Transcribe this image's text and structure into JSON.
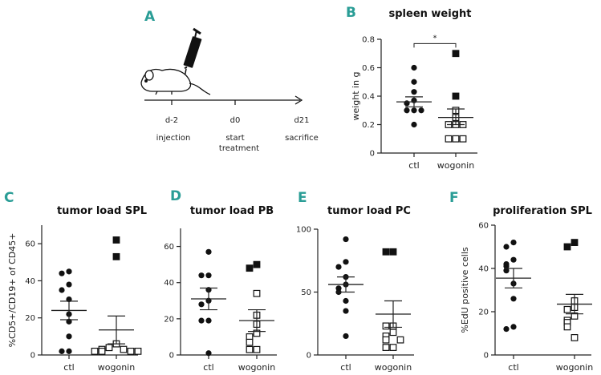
{
  "panel_a": {
    "letter": "A",
    "timeline": [
      {
        "day": "d-2",
        "label": "injection",
        "label2": ""
      },
      {
        "day": "d0",
        "label": "start",
        "label2": "treatment"
      },
      {
        "day": "d21",
        "label": "sacrifice",
        "label2": ""
      }
    ]
  },
  "colors": {
    "letter": "#2a9d96",
    "marker": "#111111"
  },
  "chart_data": [
    {
      "id": "B",
      "letter": "B",
      "type": "scatter",
      "title": "spleen weight",
      "ylabel": "weight in g",
      "categories": [
        "ctl",
        "wogonin"
      ],
      "ylim": [
        0,
        0.8
      ],
      "yticks": [
        0,
        0.2,
        0.4,
        0.6,
        0.8
      ],
      "ytick_labels": [
        "0",
        "0.2",
        "0.4",
        "0.6",
        "0.8"
      ],
      "significance": "*",
      "series": [
        {
          "name": "ctl",
          "marker": "filled-circle",
          "values": [
            0.6,
            0.5,
            0.43,
            0.37,
            0.35,
            0.3,
            0.3,
            0.3,
            0.2
          ],
          "mean": 0.36,
          "sem": [
            0.325,
            0.395
          ]
        },
        {
          "name": "wogonin",
          "marker": "open-square",
          "filled_values": [
            0.7,
            0.4
          ],
          "values": [
            0.3,
            0.25,
            0.2,
            0.2,
            0.2,
            0.1,
            0.1,
            0.1
          ],
          "mean": 0.25,
          "sem": [
            0.2,
            0.31
          ]
        }
      ]
    },
    {
      "id": "C",
      "letter": "C",
      "type": "scatter",
      "title": "tumor load SPL",
      "ylabel": "%CD5+/CD19+ of CD45+",
      "categories": [
        "ctl",
        "wogonin"
      ],
      "ylim": [
        0,
        70
      ],
      "yticks": [
        0,
        20,
        40,
        60
      ],
      "ytick_labels": [
        "0",
        "20",
        "40",
        "60"
      ],
      "series": [
        {
          "name": "ctl",
          "marker": "filled-circle",
          "values": [
            45,
            44,
            38,
            35,
            30,
            22,
            18,
            10,
            2,
            2
          ],
          "mean": 24,
          "sem": [
            19,
            29
          ]
        },
        {
          "name": "wogonin",
          "marker": "open-square",
          "filled_values": [
            62,
            53
          ],
          "values": [
            6,
            4,
            3,
            3,
            2,
            2,
            2,
            2
          ],
          "mean": 13.5,
          "sem": [
            6,
            21
          ]
        }
      ]
    },
    {
      "id": "D",
      "letter": "D",
      "type": "scatter",
      "title": "tumor load PB",
      "ylabel": "",
      "categories": [
        "ctl",
        "wogonin"
      ],
      "ylim": [
        0,
        70
      ],
      "yticks": [
        0,
        20,
        40,
        60
      ],
      "ytick_labels": [
        "0",
        "20",
        "40",
        "60"
      ],
      "series": [
        {
          "name": "ctl",
          "marker": "filled-circle",
          "values": [
            57,
            44,
            44,
            36,
            30,
            28,
            19,
            19,
            1
          ],
          "mean": 31,
          "sem": [
            25,
            37
          ]
        },
        {
          "name": "wogonin",
          "marker": "open-square",
          "filled_values": [
            50,
            48
          ],
          "values": [
            34,
            22,
            17,
            12,
            10,
            7,
            3,
            3
          ],
          "mean": 19,
          "sem": [
            13,
            25
          ]
        }
      ]
    },
    {
      "id": "E",
      "letter": "E",
      "type": "scatter",
      "title": "tumor load PC",
      "ylabel": "",
      "categories": [
        "ctl",
        "wogonin"
      ],
      "ylim": [
        0,
        100
      ],
      "yticks": [
        0,
        50,
        100
      ],
      "ytick_labels": [
        "0",
        "50",
        "100"
      ],
      "series": [
        {
          "name": "ctl",
          "marker": "filled-circle",
          "values": [
            92,
            74,
            70,
            62,
            56,
            53,
            50,
            43,
            35,
            15
          ],
          "mean": 56,
          "sem": [
            50,
            62
          ]
        },
        {
          "name": "wogonin",
          "marker": "open-square",
          "filled_values": [
            82,
            82
          ],
          "values": [
            23,
            23,
            18,
            15,
            12,
            12,
            6,
            6
          ],
          "mean": 32.5,
          "sem": [
            22,
            43
          ]
        }
      ]
    },
    {
      "id": "F",
      "letter": "F",
      "type": "scatter",
      "title": "proliferation SPL",
      "ylabel": "%EdU positive cells",
      "categories": [
        "ctl",
        "wogonin"
      ],
      "ylim": [
        0,
        60
      ],
      "yticks": [
        0,
        20,
        40,
        60
      ],
      "ytick_labels": [
        "0",
        "20",
        "40",
        "60"
      ],
      "series": [
        {
          "name": "ctl",
          "marker": "filled-circle",
          "values": [
            52,
            50,
            44,
            42,
            41,
            39,
            33,
            26,
            13,
            12
          ],
          "mean": 35.5,
          "sem": [
            31,
            40
          ]
        },
        {
          "name": "wogonin",
          "marker": "open-square",
          "filled_values": [
            52,
            50
          ],
          "values": [
            25,
            22,
            21,
            18,
            16,
            15,
            13,
            8
          ],
          "mean": 23.5,
          "sem": [
            19,
            28
          ]
        }
      ]
    }
  ]
}
